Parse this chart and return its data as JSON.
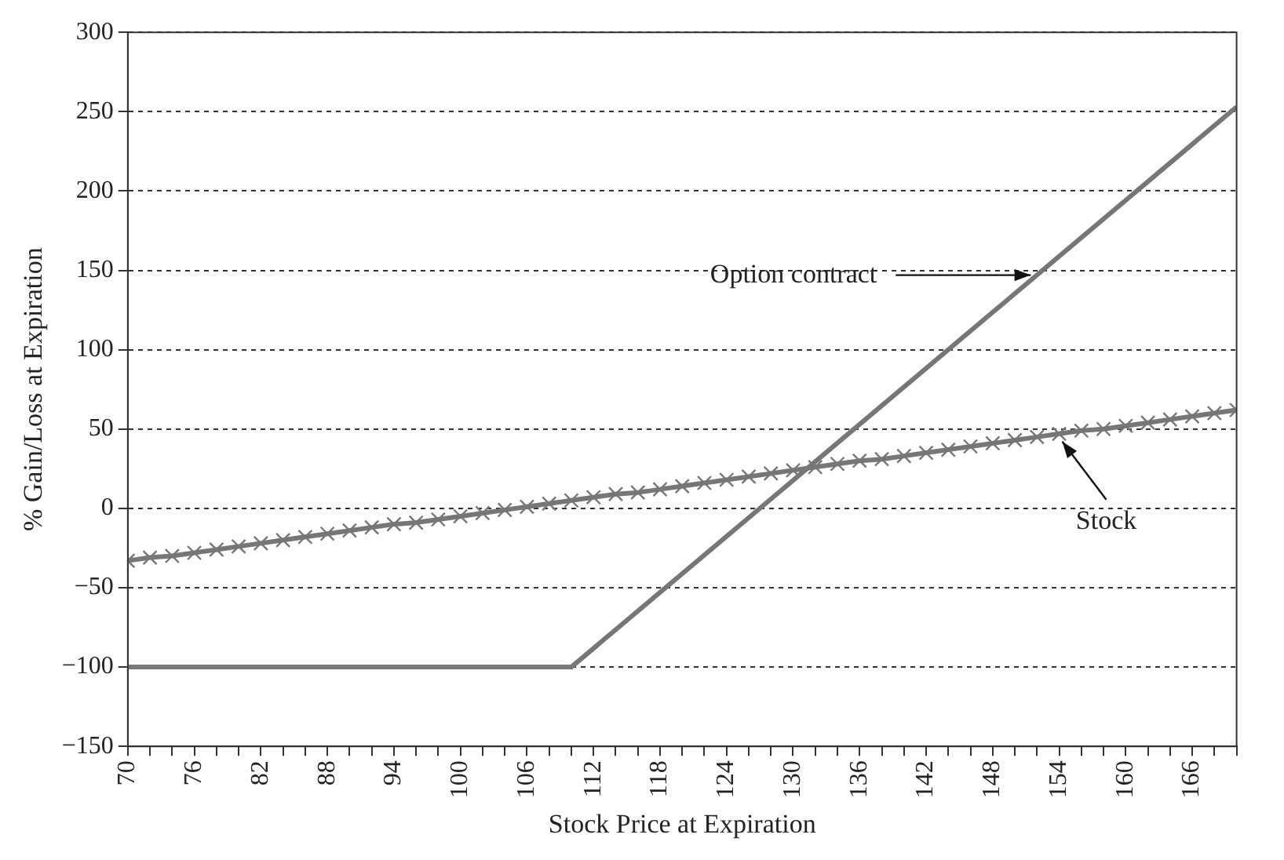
{
  "chart_data": {
    "type": "line",
    "xlabel": "Stock Price at Expiration",
    "ylabel": "% Gain/Loss at Expiration",
    "xlim": [
      70,
      170
    ],
    "xticks": [
      70,
      {
        "value": 72,
        "label": null
      },
      {
        "value": 74,
        "label": null
      },
      76,
      {
        "value": 78,
        "label": null
      },
      {
        "value": 80,
        "label": null
      },
      82,
      {
        "value": 84,
        "label": null
      },
      {
        "value": 86,
        "label": null
      },
      88,
      {
        "value": 90,
        "label": null
      },
      {
        "value": 92,
        "label": null
      },
      94,
      {
        "value": 96,
        "label": null
      },
      {
        "value": 98,
        "label": null
      },
      100,
      {
        "value": 102,
        "label": null
      },
      {
        "value": 104,
        "label": null
      },
      106,
      {
        "value": 108,
        "label": null
      },
      {
        "value": 110,
        "label": null
      },
      112,
      {
        "value": 114,
        "label": null
      },
      {
        "value": 116,
        "label": null
      },
      118,
      {
        "value": 120,
        "label": null
      },
      {
        "value": 122,
        "label": null
      },
      124,
      {
        "value": 126,
        "label": null
      },
      {
        "value": 128,
        "label": null
      },
      130,
      {
        "value": 132,
        "label": null
      },
      {
        "value": 134,
        "label": null
      },
      136,
      {
        "value": 138,
        "label": null
      },
      {
        "value": 140,
        "label": null
      },
      142,
      {
        "value": 144,
        "label": null
      },
      {
        "value": 146,
        "label": null
      },
      148,
      {
        "value": 150,
        "label": null
      },
      {
        "value": 152,
        "label": null
      },
      154,
      {
        "value": 156,
        "label": null
      },
      {
        "value": 158,
        "label": null
      },
      160,
      {
        "value": 162,
        "label": null
      },
      {
        "value": 164,
        "label": null
      },
      166,
      {
        "value": 168,
        "label": null
      },
      {
        "value": 170,
        "label": null
      }
    ],
    "ylim": [
      -150,
      300
    ],
    "yticks": [
      {
        "value": -150,
        "label": "−150"
      },
      {
        "value": -100,
        "label": "−100"
      },
      {
        "value": -50,
        "label": "−50"
      },
      0,
      50,
      100,
      150,
      200,
      250,
      300
    ],
    "grid": "y",
    "line_style": "solid",
    "series": [
      {
        "color": "#767676",
        "marker": "none",
        "x": [
          70,
          110,
          170
        ],
        "values": [
          -100,
          -100,
          253
        ]
      },
      {
        "color": "#767676",
        "marker": "cross",
        "x": [
          70,
          72,
          74,
          76,
          78,
          80,
          82,
          84,
          86,
          88,
          90,
          92,
          94,
          96,
          98,
          100,
          102,
          104,
          106,
          108,
          110,
          112,
          114,
          116,
          118,
          120,
          122,
          124,
          126,
          128,
          130,
          132,
          134,
          136,
          138,
          140,
          142,
          144,
          146,
          148,
          150,
          152,
          154,
          156,
          158,
          160,
          162,
          164,
          166,
          168,
          170
        ],
        "values": [
          -33,
          -31,
          -30,
          -28,
          -26,
          -24,
          -22,
          -20,
          -18,
          -16,
          -14,
          -12,
          -10,
          -9,
          -7,
          -5,
          -3,
          -1,
          1,
          3,
          5,
          7,
          9,
          10,
          12,
          14,
          16,
          18,
          20,
          22,
          24,
          26,
          28,
          30,
          31,
          33,
          35,
          37,
          39,
          41,
          43,
          45,
          47,
          49,
          50,
          52,
          54,
          56,
          58,
          60,
          62
        ]
      }
    ],
    "annotations": [
      {
        "text": "Option contract",
        "x": 152,
        "y": 147
      },
      {
        "text": "Stock",
        "x": 154,
        "y": 46
      }
    ]
  }
}
